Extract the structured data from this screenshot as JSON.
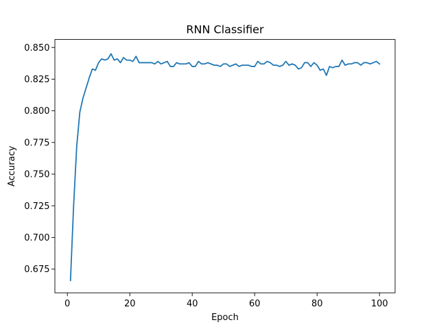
{
  "chart_data": {
    "type": "line",
    "title": "RNN Classifier",
    "xlabel": "Epoch",
    "ylabel": "Accuracy",
    "xlim": [
      -4,
      105
    ],
    "ylim": [
      0.6563,
      0.8563
    ],
    "xticks": [
      0,
      20,
      40,
      60,
      80,
      100
    ],
    "yticks": [
      0.675,
      0.7,
      0.725,
      0.75,
      0.775,
      0.8,
      0.825,
      0.85
    ],
    "ytick_labels": [
      "0.675",
      "0.700",
      "0.725",
      "0.750",
      "0.775",
      "0.800",
      "0.825",
      "0.850"
    ],
    "grid": false,
    "series": [
      {
        "color": "#1f77b4",
        "x": [
          1,
          2,
          3,
          4,
          5,
          6,
          7,
          8,
          9,
          10,
          11,
          12,
          13,
          14,
          15,
          16,
          17,
          18,
          19,
          20,
          21,
          22,
          23,
          24,
          25,
          26,
          27,
          28,
          29,
          30,
          31,
          32,
          33,
          34,
          35,
          36,
          37,
          38,
          39,
          40,
          41,
          42,
          43,
          44,
          45,
          46,
          47,
          48,
          49,
          50,
          51,
          52,
          53,
          54,
          55,
          56,
          57,
          58,
          59,
          60,
          61,
          62,
          63,
          64,
          65,
          66,
          67,
          68,
          69,
          70,
          71,
          72,
          73,
          74,
          75,
          76,
          77,
          78,
          79,
          80,
          81,
          82,
          83,
          84,
          85,
          86,
          87,
          88,
          89,
          90,
          91,
          92,
          93,
          94,
          95,
          96,
          97,
          98,
          99,
          100
        ],
        "y": [
          0.666,
          0.725,
          0.772,
          0.799,
          0.81,
          0.818,
          0.826,
          0.833,
          0.832,
          0.838,
          0.841,
          0.84,
          0.841,
          0.845,
          0.84,
          0.841,
          0.838,
          0.842,
          0.84,
          0.84,
          0.839,
          0.843,
          0.838,
          0.838,
          0.838,
          0.838,
          0.838,
          0.837,
          0.839,
          0.837,
          0.838,
          0.839,
          0.835,
          0.835,
          0.838,
          0.837,
          0.837,
          0.837,
          0.838,
          0.835,
          0.835,
          0.839,
          0.837,
          0.837,
          0.838,
          0.837,
          0.836,
          0.836,
          0.835,
          0.837,
          0.837,
          0.835,
          0.836,
          0.837,
          0.835,
          0.836,
          0.836,
          0.836,
          0.835,
          0.835,
          0.839,
          0.837,
          0.837,
          0.839,
          0.838,
          0.836,
          0.836,
          0.835,
          0.836,
          0.839,
          0.836,
          0.837,
          0.836,
          0.833,
          0.834,
          0.838,
          0.838,
          0.835,
          0.838,
          0.836,
          0.832,
          0.833,
          0.828,
          0.835,
          0.834,
          0.835,
          0.835,
          0.84,
          0.836,
          0.837,
          0.837,
          0.838,
          0.838,
          0.836,
          0.838,
          0.838,
          0.837,
          0.838,
          0.839,
          0.837
        ]
      }
    ]
  }
}
